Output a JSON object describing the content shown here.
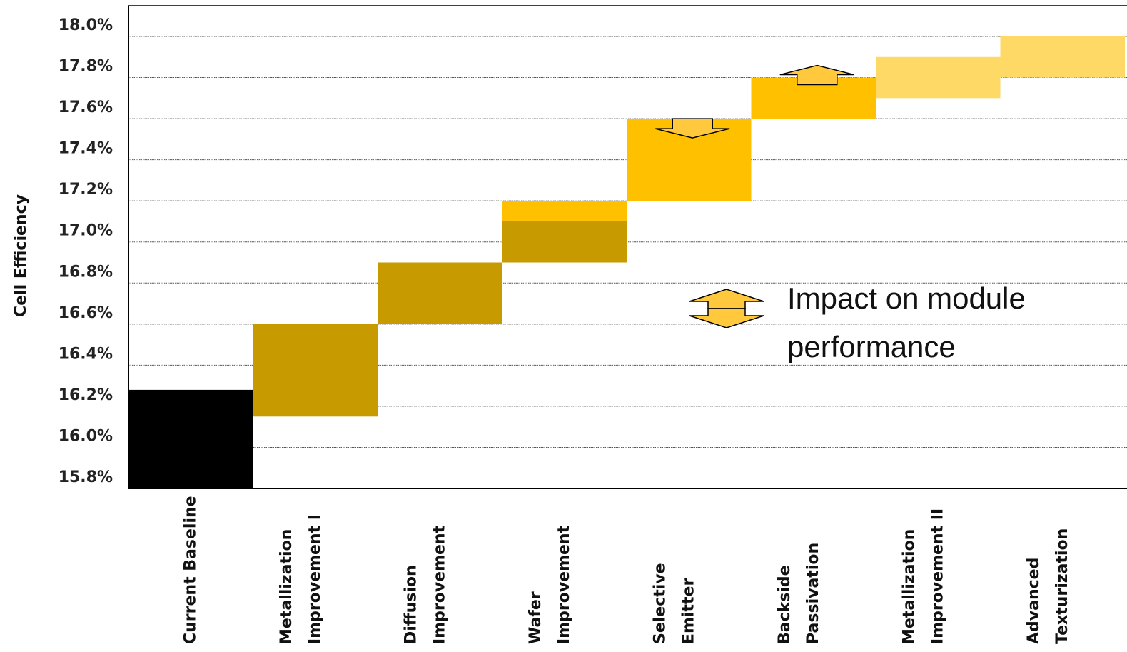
{
  "chart_data": {
    "type": "waterfall",
    "ylabel": "Cell Efficiency",
    "ylim": [
      15.8,
      18.0
    ],
    "yticks": [
      "15.8%",
      "16.0%",
      "16.2%",
      "16.4%",
      "16.6%",
      "16.8%",
      "17.0%",
      "17.2%",
      "17.4%",
      "17.6%",
      "17.8%",
      "18.0%"
    ],
    "grid": true,
    "categories": [
      [
        "Current Baseline"
      ],
      [
        "Metallization",
        "Improvement I"
      ],
      [
        "Diffusion",
        "Improvement"
      ],
      [
        "Wafer",
        "Improvement"
      ],
      [
        "Selective",
        "Emitter"
      ],
      [
        "Backside",
        "Passivation"
      ],
      [
        "Metallization",
        "Improvement II"
      ],
      [
        "Advanced",
        "Texturization"
      ]
    ],
    "bars": [
      {
        "low": 15.8,
        "high": 16.28,
        "color": "#000000"
      },
      {
        "low": 16.15,
        "high": 16.6,
        "color": "#C79A00"
      },
      {
        "low": 16.6,
        "high": 16.9,
        "color": "#C79A00"
      },
      {
        "low": 16.9,
        "high": 17.2,
        "color": "#FFC000",
        "dark_part": {
          "low": 16.9,
          "high": 17.1,
          "color": "#C79A00"
        }
      },
      {
        "low": 17.2,
        "high": 17.6,
        "color": "#FFC000"
      },
      {
        "low": 17.6,
        "high": 17.8,
        "color": "#FFC000"
      },
      {
        "low": 17.7,
        "high": 17.9,
        "color": "#FFD966"
      },
      {
        "low": 17.8,
        "high": 18.0,
        "color": "#FFD966"
      }
    ],
    "impact_arrows": [
      {
        "category_index": 4,
        "direction": "down",
        "at": 17.6
      },
      {
        "category_index": 5,
        "direction": "up",
        "at": 17.8
      }
    ],
    "legend": {
      "text_lines": [
        "Impact on module",
        "performance"
      ],
      "placement": "right-middle"
    },
    "colors": {
      "arrow_fill": "#FFC83D",
      "grid": "#555555",
      "axis": "#000000"
    }
  }
}
